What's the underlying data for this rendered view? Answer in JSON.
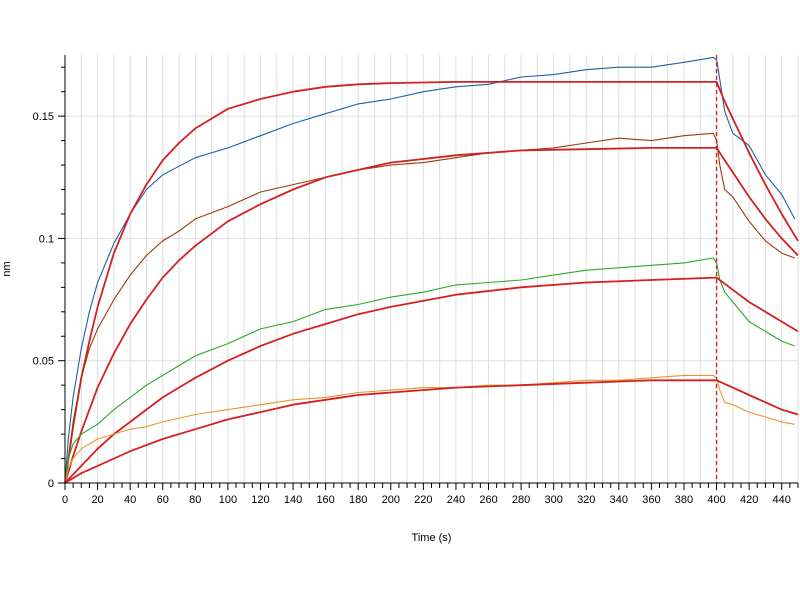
{
  "chart_data": {
    "type": "line",
    "title": "",
    "xlabel": "Time (s)",
    "ylabel": "nm",
    "xlim": [
      0,
      450
    ],
    "ylim": [
      0,
      0.175
    ],
    "x_major_ticks": [
      0,
      20,
      40,
      60,
      80,
      100,
      120,
      140,
      160,
      180,
      200,
      220,
      240,
      260,
      280,
      300,
      320,
      340,
      360,
      380,
      400,
      420,
      440
    ],
    "x_tick_labels": [
      "0",
      "20",
      "40",
      "60",
      "80",
      "100",
      "120",
      "140",
      "160",
      "180",
      "200",
      "220",
      "240",
      "260",
      "280",
      "300",
      "320",
      "340",
      "360",
      "380",
      "400",
      "420",
      "440"
    ],
    "y_major_ticks": [
      0,
      0.05,
      0.1,
      0.15
    ],
    "y_tick_labels": [
      "0",
      "0.05",
      "0.1",
      "0.15"
    ],
    "grid": true,
    "legend": "none",
    "dissociation_marker_x": 400,
    "series": [
      {
        "color": "#1f5fa8",
        "role": "measured",
        "x": [
          0,
          2,
          5,
          10,
          15,
          20,
          30,
          40,
          50,
          60,
          80,
          100,
          120,
          140,
          160,
          180,
          200,
          220,
          240,
          260,
          280,
          300,
          320,
          340,
          360,
          380,
          398,
          400,
          402,
          405,
          410,
          420,
          430,
          440,
          448
        ],
        "y": [
          0,
          0.018,
          0.035,
          0.055,
          0.07,
          0.082,
          0.098,
          0.11,
          0.12,
          0.126,
          0.133,
          0.137,
          0.142,
          0.147,
          0.151,
          0.155,
          0.157,
          0.16,
          0.162,
          0.163,
          0.166,
          0.167,
          0.169,
          0.17,
          0.17,
          0.172,
          0.174,
          0.173,
          0.165,
          0.152,
          0.143,
          0.138,
          0.126,
          0.118,
          0.108
        ]
      },
      {
        "color": "#d42020",
        "role": "fit",
        "x": [
          0,
          5,
          10,
          15,
          20,
          30,
          40,
          50,
          60,
          70,
          80,
          90,
          100,
          120,
          140,
          160,
          180,
          200,
          240,
          280,
          320,
          360,
          400,
          405,
          410,
          420,
          430,
          440,
          450
        ],
        "y": [
          0,
          0.023,
          0.043,
          0.058,
          0.072,
          0.094,
          0.11,
          0.122,
          0.132,
          0.139,
          0.145,
          0.149,
          0.153,
          0.157,
          0.16,
          0.162,
          0.163,
          0.1635,
          0.164,
          0.164,
          0.164,
          0.164,
          0.164,
          0.156,
          0.149,
          0.135,
          0.122,
          0.11,
          0.099
        ]
      },
      {
        "color": "#9c3a0c",
        "role": "measured",
        "x": [
          0,
          3,
          5,
          10,
          15,
          20,
          30,
          40,
          50,
          60,
          70,
          80,
          100,
          120,
          140,
          160,
          180,
          200,
          220,
          240,
          260,
          280,
          300,
          320,
          340,
          360,
          380,
          398,
          400,
          402,
          405,
          410,
          420,
          430,
          440,
          448
        ],
        "y": [
          0,
          0.015,
          0.025,
          0.043,
          0.055,
          0.063,
          0.075,
          0.085,
          0.093,
          0.099,
          0.103,
          0.108,
          0.113,
          0.119,
          0.122,
          0.125,
          0.128,
          0.13,
          0.131,
          0.133,
          0.135,
          0.136,
          0.137,
          0.139,
          0.141,
          0.14,
          0.142,
          0.143,
          0.14,
          0.13,
          0.12,
          0.117,
          0.107,
          0.099,
          0.094,
          0.092
        ]
      },
      {
        "color": "#d42020",
        "role": "fit",
        "x": [
          0,
          5,
          10,
          20,
          30,
          40,
          50,
          60,
          70,
          80,
          100,
          120,
          140,
          160,
          180,
          200,
          240,
          280,
          320,
          360,
          400,
          405,
          410,
          420,
          430,
          440,
          450
        ],
        "y": [
          0,
          0.011,
          0.021,
          0.039,
          0.053,
          0.065,
          0.075,
          0.084,
          0.091,
          0.097,
          0.107,
          0.114,
          0.12,
          0.125,
          0.128,
          0.131,
          0.134,
          0.136,
          0.1365,
          0.137,
          0.137,
          0.132,
          0.127,
          0.117,
          0.108,
          0.1,
          0.093
        ]
      },
      {
        "color": "#2aa82a",
        "role": "measured",
        "x": [
          0,
          2,
          5,
          10,
          20,
          30,
          40,
          50,
          60,
          70,
          80,
          100,
          120,
          140,
          160,
          180,
          200,
          220,
          240,
          260,
          280,
          300,
          320,
          340,
          360,
          380,
          398,
          400,
          402,
          405,
          410,
          420,
          430,
          440,
          448
        ],
        "y": [
          0,
          0.01,
          0.016,
          0.02,
          0.024,
          0.03,
          0.035,
          0.04,
          0.044,
          0.048,
          0.052,
          0.057,
          0.063,
          0.066,
          0.071,
          0.073,
          0.076,
          0.078,
          0.081,
          0.082,
          0.083,
          0.085,
          0.087,
          0.088,
          0.089,
          0.09,
          0.092,
          0.09,
          0.083,
          0.078,
          0.074,
          0.066,
          0.062,
          0.058,
          0.056
        ]
      },
      {
        "color": "#d42020",
        "role": "fit",
        "x": [
          0,
          10,
          20,
          30,
          40,
          60,
          80,
          100,
          120,
          140,
          160,
          180,
          200,
          240,
          280,
          320,
          360,
          400,
          405,
          410,
          420,
          430,
          440,
          450
        ],
        "y": [
          0,
          0.007,
          0.014,
          0.02,
          0.025,
          0.035,
          0.043,
          0.05,
          0.056,
          0.061,
          0.065,
          0.069,
          0.072,
          0.077,
          0.08,
          0.082,
          0.083,
          0.084,
          0.0815,
          0.079,
          0.074,
          0.07,
          0.066,
          0.062
        ]
      },
      {
        "color": "#e8962a",
        "role": "measured",
        "x": [
          0,
          2,
          5,
          10,
          20,
          30,
          40,
          50,
          60,
          80,
          100,
          120,
          140,
          160,
          180,
          200,
          220,
          240,
          260,
          280,
          300,
          320,
          340,
          360,
          380,
          398,
          400,
          402,
          405,
          410,
          420,
          430,
          440,
          448
        ],
        "y": [
          0,
          0.006,
          0.01,
          0.014,
          0.018,
          0.02,
          0.022,
          0.023,
          0.025,
          0.028,
          0.03,
          0.032,
          0.034,
          0.035,
          0.037,
          0.038,
          0.039,
          0.039,
          0.04,
          0.04,
          0.041,
          0.042,
          0.042,
          0.043,
          0.044,
          0.044,
          0.043,
          0.038,
          0.033,
          0.032,
          0.029,
          0.027,
          0.025,
          0.024
        ]
      },
      {
        "color": "#d42020",
        "role": "fit",
        "x": [
          0,
          10,
          20,
          40,
          60,
          80,
          100,
          120,
          140,
          160,
          180,
          200,
          240,
          280,
          320,
          360,
          400,
          410,
          420,
          430,
          440,
          450
        ],
        "y": [
          0,
          0.004,
          0.007,
          0.013,
          0.018,
          0.022,
          0.026,
          0.029,
          0.032,
          0.034,
          0.036,
          0.037,
          0.039,
          0.04,
          0.041,
          0.042,
          0.042,
          0.039,
          0.036,
          0.033,
          0.03,
          0.028
        ]
      }
    ]
  }
}
